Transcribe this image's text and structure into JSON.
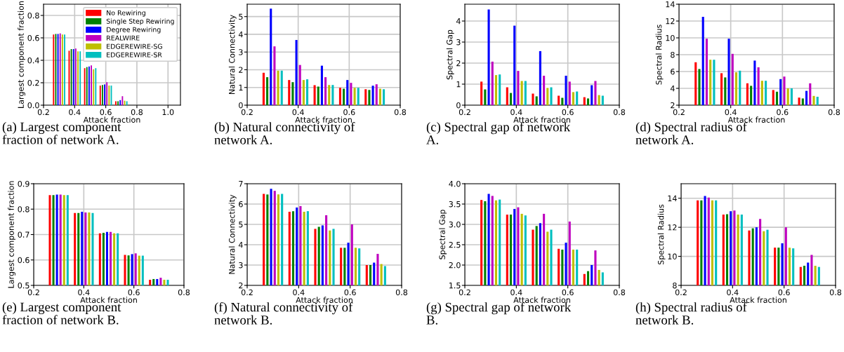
{
  "chart_data": [
    {
      "type": "bar",
      "x": [
        0.3,
        0.4,
        0.5,
        0.6,
        0.7
      ],
      "xlabel": "Attack fraction",
      "ylabel": "Largest component fraction",
      "annotations": [
        "(a) Largest component\nfraction of network A."
      ],
      "xlim": [
        0.2,
        1.08
      ],
      "xticks": [
        0.2,
        0.4,
        0.6,
        0.8,
        {
          "value": 1,
          "label": "1.0"
        }
      ],
      "ylim": [
        0,
        0.9
      ],
      "yticks": [
        {
          "value": 0,
          "label": "0.0"
        },
        0.2,
        0.4,
        0.6,
        0.8
      ],
      "grid": true,
      "legend": "top right",
      "series": [
        {
          "name": "No Rewiring",
          "color": "#ff0000",
          "values": [
            0.63,
            0.485,
            0.33,
            0.175,
            0.035
          ]
        },
        {
          "name": "Single Step Rewiring",
          "color": "#008000",
          "values": [
            0.635,
            0.5,
            0.34,
            0.18,
            0.035
          ]
        },
        {
          "name": "Degree Rewiring",
          "color": "#0000ff",
          "values": [
            0.635,
            0.5,
            0.345,
            0.185,
            0.045
          ]
        },
        {
          "name": "REALWIRE",
          "color": "#bf00bf",
          "values": [
            0.64,
            0.505,
            0.355,
            0.205,
            0.08
          ]
        },
        {
          "name": "EDGEREWIRE-SG",
          "color": "#bfbf00",
          "values": [
            0.63,
            0.48,
            0.32,
            0.175,
            0.04
          ]
        },
        {
          "name": "EDGEREWIRE-SR",
          "color": "#00bfbf",
          "values": [
            0.63,
            0.48,
            0.33,
            0.175,
            0.035
          ]
        }
      ]
    },
    {
      "type": "bar",
      "x": [
        0.3,
        0.4,
        0.5,
        0.6,
        0.7
      ],
      "xlabel": "Attack fraction",
      "ylabel": "Natural Connectivity",
      "annotations": [
        "(b) Natural connectivity of\nnetwork A."
      ],
      "xlim": [
        0.2,
        0.8
      ],
      "xticks": [
        0.2,
        0.4,
        0.6,
        0.8
      ],
      "ylim": [
        0,
        5.7
      ],
      "yticks": [
        0,
        1,
        2,
        3,
        4,
        5
      ],
      "grid": true,
      "series": [
        {
          "color": "#ff0000",
          "values": [
            1.83,
            1.42,
            1.13,
            0.98,
            0.9
          ]
        },
        {
          "color": "#008000",
          "values": [
            1.58,
            1.3,
            1.05,
            0.93,
            0.86
          ]
        },
        {
          "color": "#0000ff",
          "values": [
            5.45,
            3.68,
            2.23,
            1.42,
            1.1
          ]
        },
        {
          "color": "#bf00bf",
          "values": [
            3.32,
            2.27,
            1.58,
            1.26,
            1.18
          ]
        },
        {
          "color": "#bfbf00",
          "values": [
            1.95,
            1.42,
            1.14,
            0.98,
            0.93
          ]
        },
        {
          "color": "#00bfbf",
          "values": [
            1.95,
            1.46,
            1.14,
            0.98,
            0.9
          ]
        }
      ]
    },
    {
      "type": "bar",
      "x": [
        0.3,
        0.4,
        0.5,
        0.6,
        0.7
      ],
      "xlabel": "Attack fraction",
      "ylabel": "Spectral Gap",
      "annotations": [
        "(c) Spectral gap of network\nA."
      ],
      "xlim": [
        0.2,
        0.8
      ],
      "xticks": [
        0.2,
        0.4,
        0.6,
        0.8
      ],
      "ylim": [
        0,
        4.8
      ],
      "yticks": [
        0,
        1,
        2,
        3,
        4
      ],
      "grid": true,
      "series": [
        {
          "color": "#ff0000",
          "values": [
            1.12,
            0.85,
            0.55,
            0.45,
            0.38
          ]
        },
        {
          "color": "#008000",
          "values": [
            0.75,
            0.58,
            0.42,
            0.35,
            0.32
          ]
        },
        {
          "color": "#0000ff",
          "values": [
            4.55,
            3.78,
            2.57,
            1.4,
            0.95
          ]
        },
        {
          "color": "#bf00bf",
          "values": [
            2.07,
            1.63,
            1.4,
            1.12,
            1.15
          ]
        },
        {
          "color": "#bfbf00",
          "values": [
            1.43,
            1.15,
            0.82,
            0.62,
            0.48
          ]
        },
        {
          "color": "#00bfbf",
          "values": [
            1.46,
            1.15,
            0.85,
            0.65,
            0.45
          ]
        }
      ]
    },
    {
      "type": "bar",
      "x": [
        0.3,
        0.4,
        0.5,
        0.6,
        0.7
      ],
      "xlabel": "Attack fraction",
      "ylabel": "Spectral Radius",
      "annotations": [
        "(d) Spectral radius of\nnetwork A."
      ],
      "xlim": [
        0.2,
        0.8
      ],
      "xticks": [
        0.2,
        0.4,
        0.6,
        0.8
      ],
      "ylim": [
        2,
        14
      ],
      "yticks": [
        2,
        4,
        6,
        8,
        10,
        12,
        14
      ],
      "grid": true,
      "series": [
        {
          "color": "#ff0000",
          "values": [
            7.1,
            5.8,
            4.6,
            3.8,
            2.9
          ]
        },
        {
          "color": "#008000",
          "values": [
            6.3,
            5.3,
            4.3,
            3.6,
            2.8
          ]
        },
        {
          "color": "#0000ff",
          "values": [
            12.5,
            9.9,
            7.3,
            5.1,
            3.7
          ]
        },
        {
          "color": "#bf00bf",
          "values": [
            9.9,
            8.1,
            6.5,
            5.4,
            4.6
          ]
        },
        {
          "color": "#bfbf00",
          "values": [
            7.4,
            5.9,
            4.9,
            4.0,
            3.1
          ]
        },
        {
          "color": "#00bfbf",
          "values": [
            7.4,
            6.1,
            4.9,
            4.0,
            3.0
          ]
        }
      ]
    },
    {
      "type": "bar",
      "x": [
        0.3,
        0.4,
        0.5,
        0.6,
        0.7
      ],
      "xlabel": "Attack fraction",
      "ylabel": "Largest component fraction",
      "annotations": [
        "(e) Largest component\nfraction of network B."
      ],
      "xlim": [
        0.2,
        0.8
      ],
      "xticks": [
        0.2,
        0.4,
        0.6,
        0.8
      ],
      "ylim": [
        0.5,
        0.9
      ],
      "yticks": [
        0.5,
        0.6,
        0.7,
        0.8,
        0.9
      ],
      "grid": true,
      "series": [
        {
          "color": "#ff0000",
          "values": [
            0.855,
            0.785,
            0.705,
            0.62,
            0.522
          ]
        },
        {
          "color": "#008000",
          "values": [
            0.855,
            0.785,
            0.707,
            0.618,
            0.525
          ]
        },
        {
          "color": "#0000ff",
          "values": [
            0.857,
            0.79,
            0.71,
            0.623,
            0.525
          ]
        },
        {
          "color": "#bf00bf",
          "values": [
            0.857,
            0.787,
            0.71,
            0.626,
            0.53
          ]
        },
        {
          "color": "#bfbf00",
          "values": [
            0.855,
            0.787,
            0.705,
            0.617,
            0.522
          ]
        },
        {
          "color": "#00bfbf",
          "values": [
            0.855,
            0.785,
            0.705,
            0.617,
            0.522
          ]
        }
      ]
    },
    {
      "type": "bar",
      "x": [
        0.3,
        0.4,
        0.5,
        0.6,
        0.7
      ],
      "xlabel": "Attack fraction",
      "ylabel": "Natural Connectivity",
      "annotations": [
        "(f) Natural connectivity of\nnetwork B."
      ],
      "xlim": [
        0.2,
        0.8
      ],
      "xticks": [
        0.2,
        0.4,
        0.6,
        0.8
      ],
      "ylim": [
        2,
        7
      ],
      "yticks": [
        2,
        3,
        4,
        5,
        6,
        7
      ],
      "grid": true,
      "series": [
        {
          "color": "#ff0000",
          "values": [
            6.5,
            5.62,
            4.78,
            3.85,
            3.0
          ]
        },
        {
          "color": "#008000",
          "values": [
            6.47,
            5.65,
            4.88,
            3.85,
            3.0
          ]
        },
        {
          "color": "#0000ff",
          "values": [
            6.75,
            5.83,
            4.95,
            4.1,
            3.12
          ]
        },
        {
          "color": "#bf00bf",
          "values": [
            6.65,
            5.9,
            5.45,
            5.0,
            3.55
          ]
        },
        {
          "color": "#bfbf00",
          "values": [
            6.47,
            5.62,
            4.7,
            3.85,
            3.05
          ]
        },
        {
          "color": "#00bfbf",
          "values": [
            6.5,
            5.65,
            4.78,
            3.82,
            2.95
          ]
        }
      ]
    },
    {
      "type": "bar",
      "x": [
        0.3,
        0.4,
        0.5,
        0.6,
        0.7
      ],
      "xlabel": "Attack fraction",
      "ylabel": "Spectral Gap",
      "annotations": [
        "(g) Spectral gap of network\nB."
      ],
      "xlim": [
        0.2,
        0.8
      ],
      "xticks": [
        0.2,
        0.4,
        0.6,
        0.8
      ],
      "ylim": [
        1.5,
        4
      ],
      "yticks": [
        1.5,
        {
          "value": 2,
          "label": "2.0"
        },
        2.5,
        {
          "value": 3,
          "label": "3.0"
        },
        3.5,
        {
          "value": 4,
          "label": "4.0"
        }
      ],
      "grid": true,
      "series": [
        {
          "color": "#ff0000",
          "values": [
            3.6,
            3.24,
            2.87,
            2.4,
            1.78
          ]
        },
        {
          "color": "#008000",
          "values": [
            3.57,
            3.24,
            2.96,
            2.38,
            1.85
          ]
        },
        {
          "color": "#0000ff",
          "values": [
            3.75,
            3.38,
            3.03,
            2.55,
            2.0
          ]
        },
        {
          "color": "#bf00bf",
          "values": [
            3.7,
            3.42,
            3.26,
            3.07,
            2.36
          ]
        },
        {
          "color": "#bfbf00",
          "values": [
            3.59,
            3.26,
            2.82,
            2.38,
            1.88
          ]
        },
        {
          "color": "#00bfbf",
          "values": [
            3.61,
            3.22,
            2.87,
            2.38,
            1.82
          ]
        }
      ]
    },
    {
      "type": "bar",
      "x": [
        0.3,
        0.4,
        0.5,
        0.6,
        0.7
      ],
      "xlabel": "Attack fraction",
      "ylabel": "Spectral Radius",
      "annotations": [
        "(h) Spectral radius of\nnetwork B."
      ],
      "xlim": [
        0.2,
        0.8
      ],
      "xticks": [
        0.2,
        0.4,
        0.6,
        0.8
      ],
      "ylim": [
        8,
        15
      ],
      "yticks": [
        8,
        10,
        12,
        14
      ],
      "grid": true,
      "series": [
        {
          "color": "#ff0000",
          "values": [
            13.85,
            12.87,
            11.78,
            10.6,
            9.27
          ]
        },
        {
          "color": "#008000",
          "values": [
            13.85,
            12.9,
            11.93,
            10.6,
            9.35
          ]
        },
        {
          "color": "#0000ff",
          "values": [
            14.15,
            13.1,
            12.0,
            10.9,
            9.57
          ]
        },
        {
          "color": "#bf00bf",
          "values": [
            14.05,
            13.15,
            12.57,
            12.0,
            10.1
          ]
        },
        {
          "color": "#bfbf00",
          "values": [
            13.85,
            12.87,
            11.73,
            10.6,
            9.35
          ]
        },
        {
          "color": "#00bfbf",
          "values": [
            13.85,
            12.87,
            11.83,
            10.55,
            9.27
          ]
        }
      ]
    }
  ]
}
